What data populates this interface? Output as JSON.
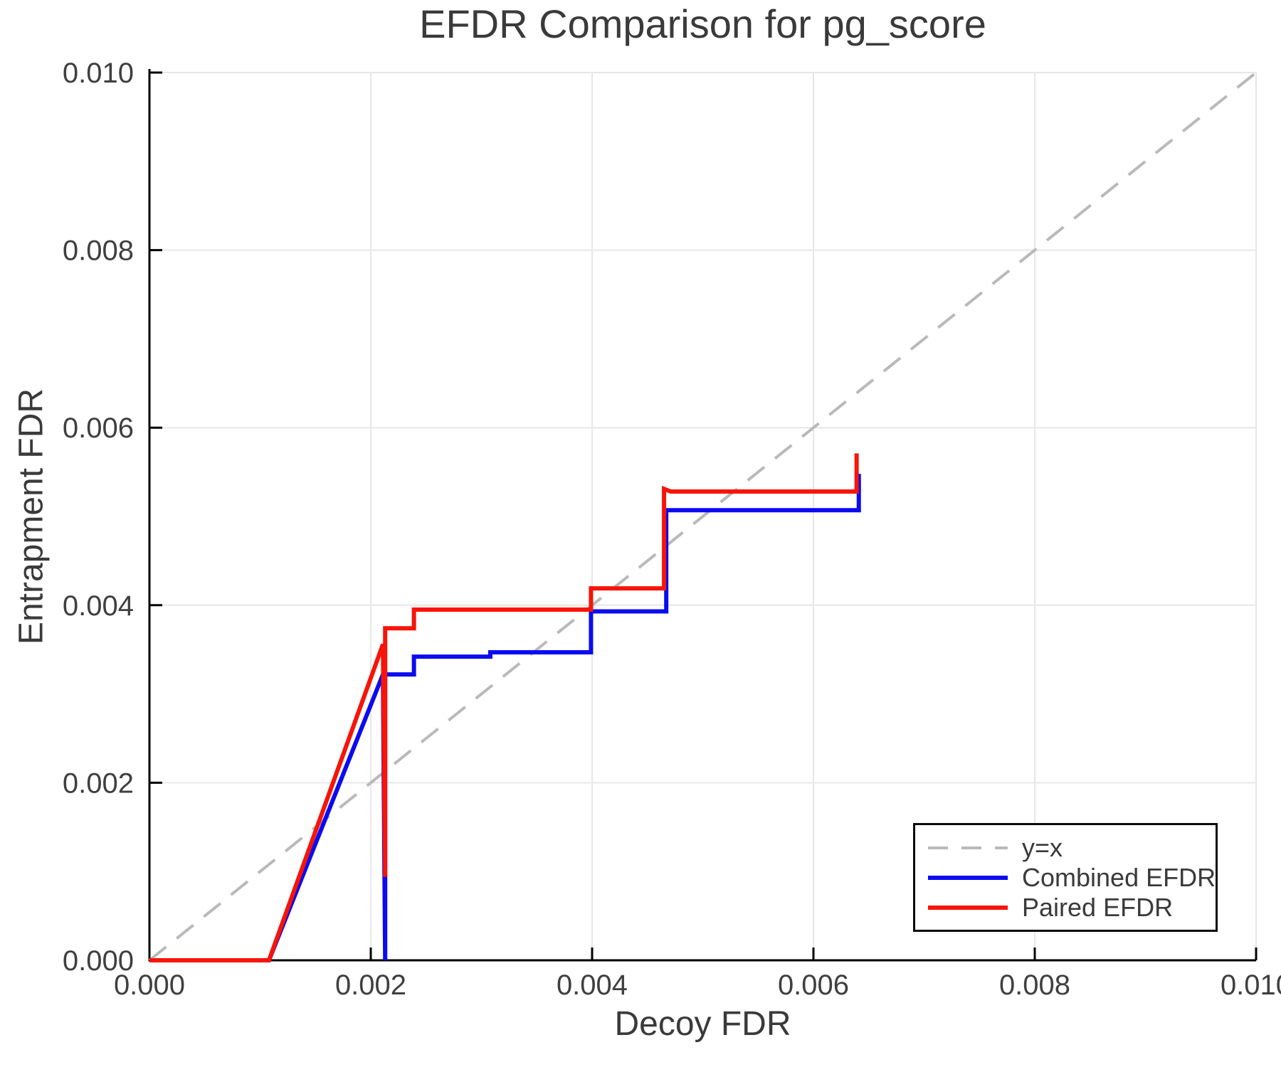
{
  "title": "EFDR Comparison for pg_score",
  "axes": {
    "xlabel": "Decoy FDR",
    "ylabel": "Entrapment FDR",
    "xlim": [
      0.0,
      0.01
    ],
    "ylim": [
      0.0,
      0.01
    ],
    "x_ticks": {
      "values": [
        0.0,
        0.002,
        0.004,
        0.006,
        0.008,
        0.01
      ],
      "labels": [
        "0.000",
        "0.002",
        "0.004",
        "0.006",
        "0.008",
        "0.010"
      ]
    },
    "y_ticks": {
      "values": [
        0.0,
        0.002,
        0.004,
        0.006,
        0.008,
        0.01
      ],
      "labels": [
        "0.000",
        "0.002",
        "0.004",
        "0.006",
        "0.008",
        "0.010"
      ]
    }
  },
  "colors": {
    "grid": "#e7e7e7",
    "spine": "#000000",
    "tick_text": "#3f3f3f",
    "identity_line": "#b9b9b9",
    "combined_line": "#0b0bf0",
    "paired_line": "#f71408",
    "legend_border": "#0a0a0a",
    "background": "#ffffff"
  },
  "chart_data": {
    "type": "line",
    "title": "EFDR Comparison for pg_score",
    "xlabel": "Decoy FDR",
    "ylabel": "Entrapment FDR",
    "xlim": [
      0.0,
      0.01
    ],
    "ylim": [
      0.0,
      0.01
    ],
    "grid": true,
    "legend_position": "bottom-right",
    "series": [
      {
        "name": "y=x",
        "style": "dashed",
        "color": "#b9b9b9",
        "width": 4,
        "points": [
          [
            0.0,
            0.0
          ],
          [
            0.01,
            0.01
          ]
        ]
      },
      {
        "name": "Combined EFDR",
        "style": "solid",
        "color": "#0b0bf0",
        "width": 6,
        "points": [
          [
            0.0,
            0.0
          ],
          [
            0.00108,
            0.0
          ],
          [
            0.00211,
            0.00322
          ],
          [
            0.00213,
            0.0
          ],
          [
            0.00213,
            0.00322
          ],
          [
            0.00239,
            0.00322
          ],
          [
            0.00239,
            0.00342
          ],
          [
            0.00308,
            0.00342
          ],
          [
            0.00308,
            0.00347
          ],
          [
            0.00399,
            0.00347
          ],
          [
            0.00399,
            0.00393
          ],
          [
            0.00467,
            0.00393
          ],
          [
            0.00467,
            0.00507
          ],
          [
            0.00641,
            0.00507
          ],
          [
            0.00641,
            0.00548
          ]
        ]
      },
      {
        "name": "Paired EFDR",
        "style": "solid",
        "color": "#f71408",
        "width": 6,
        "points": [
          [
            0.0,
            0.0
          ],
          [
            0.00108,
            0.0
          ],
          [
            0.00211,
            0.00356
          ],
          [
            0.00213,
            0.00094
          ],
          [
            0.00213,
            0.00374
          ],
          [
            0.00239,
            0.00374
          ],
          [
            0.00239,
            0.00395
          ],
          [
            0.00399,
            0.00395
          ],
          [
            0.00399,
            0.00419
          ],
          [
            0.00465,
            0.00419
          ],
          [
            0.00465,
            0.00531
          ],
          [
            0.00471,
            0.00528
          ],
          [
            0.00639,
            0.00528
          ],
          [
            0.00639,
            0.00571
          ]
        ]
      }
    ]
  },
  "legend": {
    "entries": [
      {
        "label": "y=x"
      },
      {
        "label": "Combined EFDR"
      },
      {
        "label": "Paired EFDR"
      }
    ]
  }
}
